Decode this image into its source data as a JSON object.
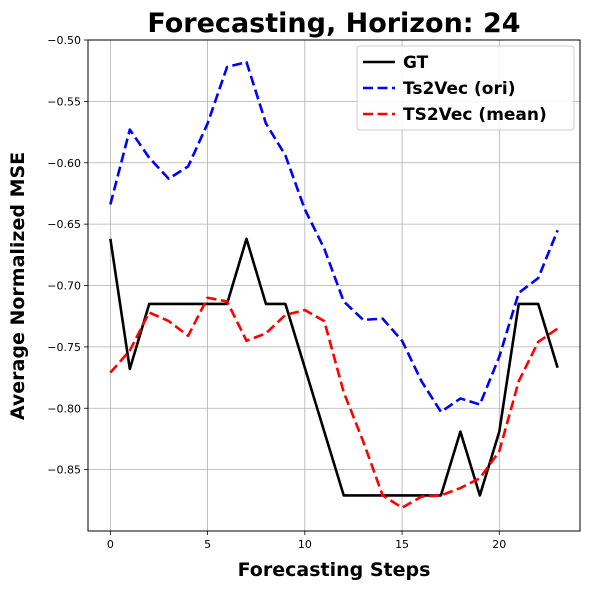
{
  "chart_data": {
    "type": "line",
    "title": "Forecasting, Horizon: 24",
    "xlabel": "Forecasting Steps",
    "ylabel": "Average Normalized MSE",
    "xlim": [
      -1.15,
      24.15
    ],
    "ylim": [
      -0.9,
      -0.5
    ],
    "xticks": [
      0,
      5,
      10,
      15,
      20
    ],
    "xtick_labels": [
      "0",
      "5",
      "10",
      "15",
      "20"
    ],
    "yticks": [
      -0.85,
      -0.8,
      -0.75,
      -0.7,
      -0.65,
      -0.6,
      -0.55,
      -0.5
    ],
    "ytick_labels": [
      "−0.85",
      "−0.80",
      "−0.75",
      "−0.70",
      "−0.65",
      "−0.60",
      "−0.55",
      "−0.50"
    ],
    "grid": true,
    "legend_position": "top-right",
    "x": [
      0,
      1,
      2,
      3,
      4,
      5,
      6,
      7,
      8,
      9,
      10,
      11,
      12,
      13,
      14,
      15,
      16,
      17,
      18,
      19,
      20,
      21,
      22,
      23
    ],
    "series": [
      {
        "name": "GT",
        "color": "#000000",
        "dash": "solid",
        "values": [
          -0.662,
          -0.768,
          -0.715,
          -0.715,
          -0.715,
          -0.715,
          -0.715,
          -0.662,
          -0.715,
          -0.715,
          -0.767,
          -0.819,
          -0.871,
          -0.871,
          -0.871,
          -0.871,
          -0.871,
          -0.871,
          -0.819,
          -0.871,
          -0.819,
          -0.715,
          -0.715,
          -0.767
        ]
      },
      {
        "name": "Ts2Vec (ori)",
        "color": "#0000ff",
        "dash": "dashed",
        "values": [
          -0.634,
          -0.573,
          -0.596,
          -0.613,
          -0.603,
          -0.568,
          -0.522,
          -0.518,
          -0.568,
          -0.594,
          -0.638,
          -0.67,
          -0.713,
          -0.728,
          -0.727,
          -0.745,
          -0.778,
          -0.803,
          -0.792,
          -0.797,
          -0.758,
          -0.706,
          -0.694,
          -0.655
        ]
      },
      {
        "name": "TS2Vec (mean)",
        "color": "#ff0000",
        "dash": "dashed",
        "values": [
          -0.771,
          -0.753,
          -0.722,
          -0.729,
          -0.741,
          -0.71,
          -0.713,
          -0.745,
          -0.739,
          -0.724,
          -0.72,
          -0.729,
          -0.787,
          -0.827,
          -0.871,
          -0.881,
          -0.872,
          -0.871,
          -0.865,
          -0.857,
          -0.835,
          -0.778,
          -0.746,
          -0.735
        ]
      }
    ]
  }
}
